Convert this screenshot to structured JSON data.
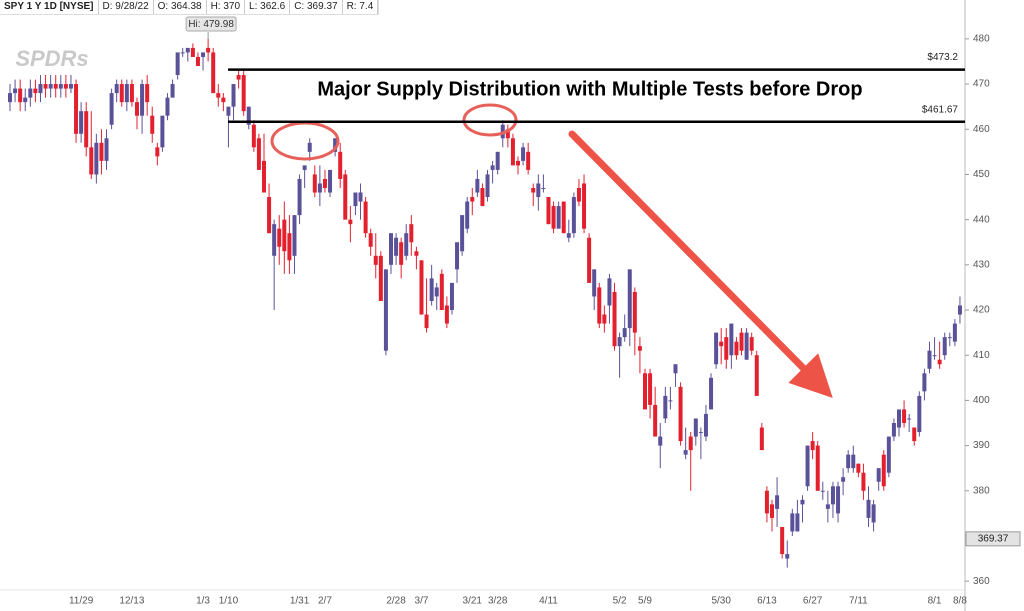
{
  "chart_data": {
    "type": "candlestick",
    "header": [
      "SPY 1 Y 1D [NYSE]",
      "D: 9/28/22",
      "O: 364.38",
      "H: 370",
      "L: 362.6",
      "C: 369.37",
      "R: 7.4"
    ],
    "logo": "SPDRs",
    "annotation": "Major Supply Distribution with Multiple Tests before Drop",
    "hi_marker": {
      "index": 39,
      "value": 479.98,
      "label": "Hi: 479.98"
    },
    "levels": [
      {
        "value": 473.2,
        "label": "$473.2"
      },
      {
        "value": 461.67,
        "label": "$461.67"
      }
    ],
    "last_price": {
      "value": 369.37,
      "label": "369.37"
    },
    "ylim": [
      353.4,
      488.6
    ],
    "yticks": [
      360,
      370,
      380,
      390,
      400,
      410,
      420,
      430,
      440,
      450,
      460,
      470,
      480
    ],
    "up_color": "#5a5299",
    "down_color": "#e3202e",
    "categories": [
      null,
      null,
      null,
      null,
      null,
      null,
      null,
      null,
      null,
      null,
      null,
      null,
      null,
      null,
      "11/29",
      null,
      null,
      null,
      null,
      null,
      null,
      null,
      null,
      null,
      "12/13",
      null,
      null,
      null,
      null,
      null,
      null,
      null,
      null,
      null,
      null,
      null,
      null,
      null,
      "1/3",
      null,
      null,
      null,
      null,
      "1/10",
      null,
      null,
      null,
      null,
      null,
      null,
      null,
      null,
      null,
      null,
      null,
      null,
      null,
      "1/31",
      null,
      null,
      null,
      null,
      "2/7",
      null,
      null,
      null,
      null,
      null,
      null,
      null,
      null,
      null,
      null,
      null,
      null,
      null,
      "2/28",
      null,
      null,
      null,
      null,
      "3/7",
      null,
      null,
      null,
      null,
      null,
      null,
      null,
      null,
      null,
      "3/21",
      null,
      null,
      null,
      null,
      "3/28",
      null,
      null,
      null,
      null,
      null,
      null,
      null,
      null,
      null,
      "4/11",
      null,
      null,
      null,
      null,
      null,
      null,
      null,
      null,
      null,
      null,
      null,
      null,
      null,
      "5/2",
      null,
      null,
      null,
      null,
      "5/9",
      null,
      null,
      null,
      null,
      null,
      null,
      null,
      null,
      null,
      null,
      null,
      null,
      null,
      null,
      "5/30",
      null,
      null,
      null,
      null,
      null,
      null,
      null,
      null,
      "6/13",
      null,
      null,
      null,
      null,
      null,
      null,
      null,
      null,
      "6/27",
      null,
      null,
      null,
      null,
      null,
      null,
      null,
      null,
      "7/11",
      null,
      null,
      null,
      null,
      null,
      null,
      null,
      null,
      null,
      null,
      null,
      null,
      null,
      null,
      "8/1",
      null,
      null,
      null,
      null,
      "8/8"
    ],
    "values": [
      [
        466,
        470,
        464,
        468
      ],
      [
        468,
        471,
        466,
        469
      ],
      [
        469,
        471,
        464,
        466
      ],
      [
        466,
        469,
        464,
        467
      ],
      [
        467,
        471,
        465,
        469
      ],
      [
        469,
        471,
        466,
        468
      ],
      [
        468,
        472,
        466,
        470
      ],
      [
        470,
        472,
        467,
        469
      ],
      [
        469,
        472,
        467,
        470
      ],
      [
        470,
        472,
        467,
        469
      ],
      [
        469,
        472,
        467,
        470
      ],
      [
        470,
        472,
        467,
        469
      ],
      [
        469,
        472,
        468,
        470
      ],
      [
        470,
        471,
        457,
        459
      ],
      [
        459,
        466,
        457,
        464
      ],
      [
        464,
        466,
        454,
        456
      ],
      [
        456,
        464,
        449,
        450
      ],
      [
        450,
        459,
        448,
        457
      ],
      [
        457,
        460,
        450,
        453
      ],
      [
        453,
        460,
        451,
        458
      ],
      [
        461,
        469,
        460,
        468
      ],
      [
        468,
        471,
        466,
        470
      ],
      [
        470,
        471,
        465,
        466
      ],
      [
        466,
        471,
        464,
        470
      ],
      [
        470,
        471,
        465,
        466
      ],
      [
        466,
        467,
        460,
        463
      ],
      [
        463,
        471,
        459,
        470
      ],
      [
        470,
        472,
        463,
        466
      ],
      [
        463,
        465,
        457,
        459
      ],
      [
        456,
        457,
        452,
        454
      ],
      [
        456,
        463,
        455,
        463
      ],
      [
        463,
        468,
        462,
        467
      ],
      [
        467,
        471,
        467,
        470
      ],
      [
        472,
        477,
        471,
        477
      ],
      [
        477,
        478,
        476,
        477
      ],
      [
        477,
        478,
        475,
        478
      ],
      [
        478,
        479,
        476,
        476
      ],
      [
        476,
        477,
        474,
        474
      ],
      [
        476,
        477,
        473,
        477
      ],
      [
        478,
        479.98,
        475,
        477
      ],
      [
        477,
        478,
        468,
        468
      ],
      [
        468,
        470,
        465,
        467
      ],
      [
        467,
        468,
        464,
        466
      ],
      [
        463,
        465,
        456,
        465
      ],
      [
        465,
        470,
        462,
        470
      ],
      [
        472,
        473,
        469,
        471
      ],
      [
        472,
        473,
        463,
        464
      ],
      [
        461,
        465,
        460,
        465
      ],
      [
        461,
        462,
        455,
        456
      ],
      [
        458,
        459,
        451,
        451
      ],
      [
        453,
        459,
        446,
        446
      ],
      [
        445,
        448,
        437,
        437
      ],
      [
        432,
        440,
        420,
        439
      ],
      [
        438,
        441,
        430,
        434
      ],
      [
        440,
        444,
        428,
        433
      ],
      [
        437,
        441,
        428,
        431
      ],
      [
        432,
        441,
        428,
        441
      ],
      [
        441,
        450,
        439,
        449
      ],
      [
        451,
        452,
        447,
        452
      ],
      [
        455,
        458,
        453,
        457
      ],
      [
        450,
        452,
        445,
        446
      ],
      [
        446,
        452,
        443,
        448
      ],
      [
        449,
        451,
        446,
        447
      ],
      [
        446,
        451,
        445,
        451
      ],
      [
        455,
        458,
        454,
        458
      ],
      [
        455,
        457,
        447,
        449
      ],
      [
        450,
        451,
        440,
        440
      ],
      [
        440,
        443,
        435,
        439
      ],
      [
        443,
        446,
        441,
        446
      ],
      [
        444,
        448,
        440,
        446
      ],
      [
        444,
        445,
        436,
        437
      ],
      [
        437,
        438,
        432,
        434
      ],
      [
        432,
        437,
        427,
        430
      ],
      [
        432,
        433,
        422,
        422
      ],
      [
        411,
        429,
        410,
        429
      ],
      [
        430,
        437,
        428,
        437
      ],
      [
        432,
        437,
        430,
        436
      ],
      [
        435,
        436,
        427,
        430
      ],
      [
        432,
        439,
        431,
        437
      ],
      [
        439,
        441,
        432,
        435
      ],
      [
        433,
        434,
        429,
        432
      ],
      [
        431,
        431,
        419,
        419
      ],
      [
        419,
        427,
        415,
        416
      ],
      [
        422,
        430,
        421,
        427
      ],
      [
        423,
        426,
        420,
        425
      ],
      [
        428,
        429,
        420,
        420
      ],
      [
        421,
        423,
        416,
        417
      ],
      [
        420,
        426,
        419,
        426
      ],
      [
        429,
        435,
        426,
        435
      ],
      [
        433,
        441,
        432,
        441
      ],
      [
        438,
        445,
        437,
        444
      ],
      [
        445,
        447,
        441,
        444
      ],
      [
        446,
        451,
        445,
        449
      ],
      [
        447,
        448,
        443,
        443
      ],
      [
        445,
        451,
        444,
        450
      ],
      [
        451,
        453,
        448,
        452
      ],
      [
        451,
        455,
        450,
        455
      ],
      [
        458,
        462,
        456,
        461
      ],
      [
        460,
        461,
        456,
        458
      ],
      [
        458,
        459,
        452,
        452
      ],
      [
        453,
        454,
        450,
        452
      ],
      [
        453,
        457,
        452,
        456
      ],
      [
        455,
        457,
        450,
        451
      ],
      [
        447,
        448,
        443,
        446
      ],
      [
        445,
        450,
        442,
        448
      ],
      [
        447,
        450,
        446,
        447
      ],
      [
        445,
        445,
        439,
        439
      ],
      [
        443,
        444,
        437,
        438
      ],
      [
        438,
        444,
        438,
        443
      ],
      [
        444,
        444,
        437,
        437
      ],
      [
        436,
        440,
        435,
        437
      ],
      [
        437,
        446,
        436,
        445
      ],
      [
        447,
        449,
        443,
        444
      ],
      [
        448,
        450,
        437,
        438
      ],
      [
        436,
        437,
        426,
        426
      ],
      [
        423,
        429,
        420,
        429
      ],
      [
        425,
        426,
        416,
        417
      ],
      [
        419,
        421,
        415,
        417
      ],
      [
        421,
        428,
        417,
        427
      ],
      [
        424,
        426,
        411,
        412
      ],
      [
        412,
        415,
        405,
        414
      ],
      [
        414,
        419,
        413,
        416
      ],
      [
        416,
        429,
        412,
        429
      ],
      [
        424,
        425,
        410,
        415
      ],
      [
        412,
        414,
        406,
        411
      ],
      [
        406,
        407,
        398,
        398
      ],
      [
        406,
        407,
        396,
        399
      ],
      [
        399,
        403,
        392,
        392
      ],
      [
        390,
        395,
        385,
        392
      ],
      [
        396,
        403,
        395,
        401
      ],
      [
        400,
        403,
        398,
        400
      ],
      [
        406,
        408,
        403,
        408
      ],
      [
        403,
        404,
        390,
        391
      ],
      [
        388,
        394,
        387,
        389
      ],
      [
        392,
        393,
        380,
        389
      ],
      [
        392,
        396,
        390,
        396
      ],
      [
        393,
        394,
        387,
        393
      ],
      [
        392,
        399,
        391,
        397
      ],
      [
        398,
        406,
        398,
        405
      ],
      [
        408,
        415,
        407,
        415
      ],
      [
        413,
        416,
        408,
        412
      ],
      [
        414,
        416,
        407,
        409
      ],
      [
        410,
        417,
        407,
        417
      ],
      [
        413,
        414,
        409,
        410
      ],
      [
        415,
        416,
        410,
        411
      ],
      [
        409,
        416,
        409,
        415
      ],
      [
        414,
        415,
        410,
        411
      ],
      [
        410,
        411,
        401,
        401
      ],
      [
        394,
        395,
        389,
        389
      ],
      [
        380,
        381,
        373,
        375
      ],
      [
        377,
        378,
        371,
        374
      ],
      [
        376,
        383,
        372,
        379
      ],
      [
        372,
        372,
        365,
        366
      ],
      [
        365,
        369,
        363,
        366
      ],
      [
        371,
        376,
        370,
        375
      ],
      [
        371,
        378,
        371,
        375
      ],
      [
        377,
        379,
        373,
        378
      ],
      [
        381,
        390,
        380,
        390
      ],
      [
        391,
        393,
        387,
        389
      ],
      [
        390,
        391,
        380,
        380
      ],
      [
        380,
        382,
        378,
        380
      ],
      [
        376,
        380,
        373,
        377
      ],
      [
        377,
        382,
        374,
        381
      ],
      [
        375,
        382,
        373,
        381
      ],
      [
        382,
        385,
        379,
        383
      ],
      [
        385,
        389,
        384,
        388
      ],
      [
        385,
        390,
        384,
        388
      ],
      [
        386,
        386,
        383,
        384
      ],
      [
        384,
        386,
        378,
        380
      ],
      [
        374,
        381,
        372,
        378
      ],
      [
        373,
        378,
        371,
        377
      ],
      [
        382,
        385,
        380,
        385
      ],
      [
        388,
        389,
        380,
        381
      ],
      [
        384,
        392,
        383,
        392
      ],
      [
        392,
        396,
        391,
        395
      ],
      [
        394,
        398,
        392,
        398
      ],
      [
        398,
        400,
        394,
        395
      ],
      [
        396,
        397,
        393,
        396
      ],
      [
        394,
        394,
        390,
        391
      ],
      [
        393,
        402,
        392,
        401
      ],
      [
        402,
        407,
        400,
        406
      ],
      [
        407,
        413,
        406,
        411
      ],
      [
        410,
        414,
        409,
        410
      ],
      [
        409,
        413,
        407,
        408
      ],
      [
        410,
        415,
        409,
        414
      ],
      [
        414,
        415,
        412,
        414
      ],
      [
        413,
        418,
        412,
        417
      ],
      [
        419,
        423,
        417,
        421
      ]
    ]
  }
}
